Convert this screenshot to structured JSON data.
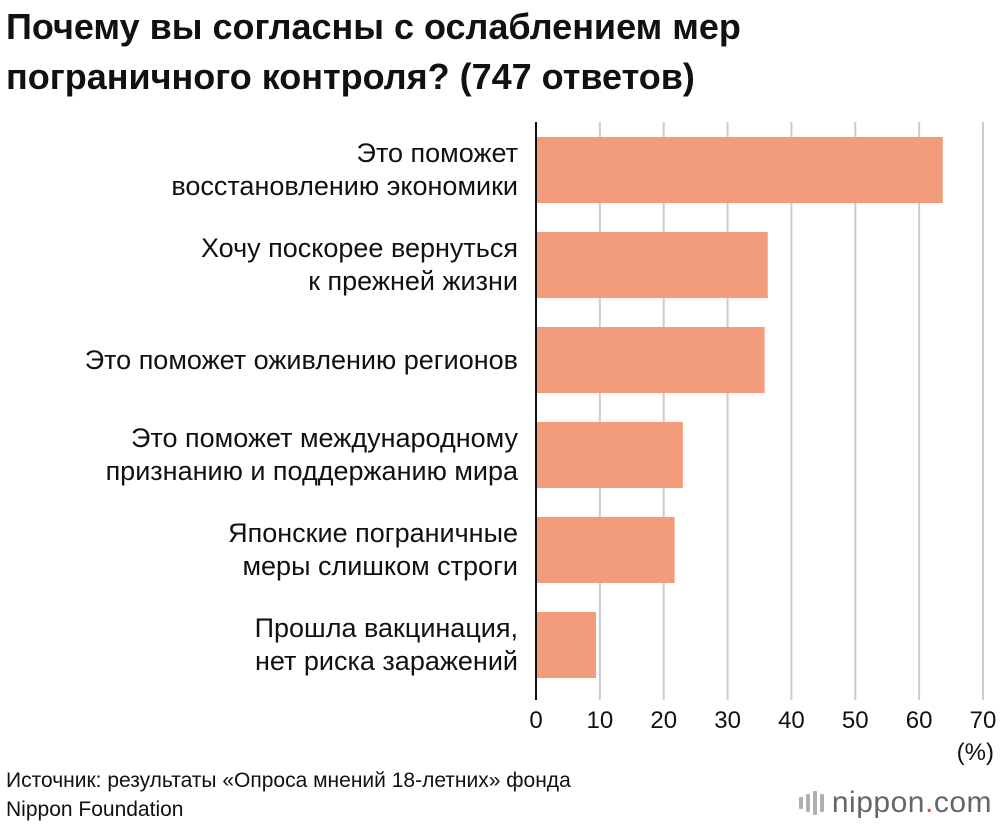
{
  "title": {
    "line1": "Почему вы согласны с ослаблением мер",
    "line2": "пограничного контроля? (747 ответов)"
  },
  "chart_data": {
    "type": "bar",
    "orientation": "horizontal",
    "title": "Почему вы согласны с ослаблением мер пограничного контроля? (747 ответов)",
    "categories": [
      [
        "Это поможет",
        "восстановлению экономики"
      ],
      [
        "Хочу поскорее вернуться",
        "к прежней жизни"
      ],
      [
        "Это поможет оживлению регионов"
      ],
      [
        "Это поможет международному",
        "признанию и поддержанию мира"
      ],
      [
        "Японские пограничные",
        "меры слишком строги"
      ],
      [
        "Прошла вакцинация,",
        "нет риска заражений"
      ]
    ],
    "values": [
      63.7,
      36.3,
      35.8,
      23.0,
      21.7,
      9.4
    ],
    "xlim": [
      0,
      70
    ],
    "xticks": [
      "0",
      "10",
      "20",
      "30",
      "40",
      "50",
      "60",
      "70"
    ],
    "xunit": "(%)",
    "bar_color": "#f29c7c",
    "grid_color": "#cccccc",
    "axis_color": "#111111",
    "grid": true
  },
  "source": {
    "line1": "Источник: результаты «Опроса мнений 18-летних» фонда",
    "line2": "Nippon Foundation"
  },
  "brand": {
    "name": "nippon",
    "dot": ".",
    "domain": "com"
  }
}
